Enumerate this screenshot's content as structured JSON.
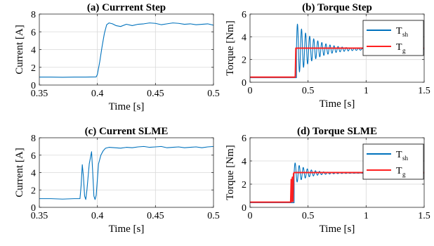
{
  "colors": {
    "blue": "#0072bd",
    "red": "#ff2020",
    "grid": "#d9d9d9",
    "axis": "#262626"
  },
  "chart_data": [
    {
      "type": "line",
      "title": "(a) Currrent Step",
      "xlabel": "Time [s]",
      "ylabel": "Current [A]",
      "xlim": [
        0.35,
        0.5
      ],
      "ylim": [
        0,
        8
      ],
      "xticks": [
        0.35,
        0.4,
        0.45,
        0.5
      ],
      "xticklabels": [
        "0.35",
        "0.4",
        "0.45",
        "0.5"
      ],
      "yticks": [
        0,
        2,
        4,
        6,
        8
      ],
      "yticklabels": [
        "0",
        "2",
        "4",
        "6",
        "8"
      ],
      "grid": true,
      "legend": null,
      "series": [
        {
          "color": "blue",
          "x": [
            0.35,
            0.36,
            0.37,
            0.38,
            0.39,
            0.399,
            0.4,
            0.402,
            0.404,
            0.406,
            0.408,
            0.41,
            0.413,
            0.416,
            0.42,
            0.425,
            0.43,
            0.435,
            0.44,
            0.445,
            0.45,
            0.455,
            0.46,
            0.465,
            0.47,
            0.475,
            0.48,
            0.485,
            0.49,
            0.495,
            0.5
          ],
          "y": [
            0.9,
            0.9,
            0.88,
            0.9,
            0.9,
            0.92,
            1.2,
            2.6,
            4.3,
            5.8,
            6.8,
            7.0,
            6.9,
            6.7,
            6.6,
            6.85,
            6.7,
            6.85,
            6.9,
            7.0,
            6.95,
            6.8,
            6.9,
            7.0,
            6.95,
            6.85,
            6.9,
            6.8,
            6.85,
            6.9,
            6.75
          ]
        }
      ]
    },
    {
      "type": "line",
      "title": "(b)  Torque Step",
      "xlabel": "Time [s]",
      "ylabel": "Torque [Nm]",
      "xlim": [
        0,
        1.5
      ],
      "ylim": [
        0,
        6
      ],
      "xticks": [
        0,
        0.5,
        1,
        1.5
      ],
      "xticklabels": [
        "0",
        "0.5",
        "1",
        "1.5"
      ],
      "yticks": [
        0,
        2,
        4,
        6
      ],
      "yticklabels": [
        "0",
        "2",
        "4",
        "6"
      ],
      "grid": true,
      "legend": "top-right",
      "series": [
        {
          "name": "T",
          "subscript": "sh",
          "color": "blue",
          "x": [
            0,
            0.39
          ],
          "y": [
            0.4,
            0.4
          ],
          "osc": {
            "t0": 0.4,
            "t1": 1.5,
            "base": 2.9,
            "amp": 2.35,
            "tau": 0.16,
            "period": 0.035,
            "pre": 0.4,
            "floor": 0.4
          }
        },
        {
          "name": "T",
          "subscript": "g",
          "color": "red",
          "x": [
            0,
            0.39,
            0.395,
            1.5
          ],
          "y": [
            0.45,
            0.45,
            3.0,
            3.0
          ]
        }
      ]
    },
    {
      "type": "line",
      "title": "(c) Current SLME",
      "xlabel": "Time [s]",
      "ylabel": "Current [A]",
      "xlim": [
        0.35,
        0.5
      ],
      "ylim": [
        0,
        8
      ],
      "xticks": [
        0.35,
        0.4,
        0.45,
        0.5
      ],
      "xticklabels": [
        "0.35",
        "0.4",
        "0.45",
        "0.5"
      ],
      "yticks": [
        0,
        2,
        4,
        6,
        8
      ],
      "yticklabels": [
        "0",
        "2",
        "4",
        "6",
        "8"
      ],
      "grid": true,
      "legend": null,
      "series": [
        {
          "color": "blue",
          "x": [
            0.35,
            0.36,
            0.37,
            0.38,
            0.385,
            0.386,
            0.387,
            0.388,
            0.389,
            0.39,
            0.391,
            0.393,
            0.395,
            0.396,
            0.397,
            0.398,
            0.399,
            0.4,
            0.401,
            0.403,
            0.405,
            0.407,
            0.41,
            0.415,
            0.42,
            0.425,
            0.43,
            0.435,
            0.44,
            0.445,
            0.45,
            0.455,
            0.46,
            0.465,
            0.47,
            0.475,
            0.48,
            0.485,
            0.49,
            0.495,
            0.5
          ],
          "y": [
            1.0,
            1.0,
            0.95,
            1.0,
            1.0,
            2.5,
            4.9,
            3.5,
            1.3,
            0.9,
            2.0,
            5.0,
            6.4,
            4.0,
            1.3,
            0.9,
            1.4,
            3.2,
            5.0,
            6.0,
            6.5,
            6.8,
            6.9,
            6.85,
            6.8,
            6.9,
            6.85,
            6.95,
            7.0,
            6.9,
            6.95,
            7.0,
            6.85,
            6.9,
            6.95,
            6.85,
            6.9,
            6.95,
            6.85,
            6.95,
            7.0
          ]
        }
      ]
    },
    {
      "type": "line",
      "title": "(d) Torque SLME",
      "xlabel": "Time [s]",
      "ylabel": "Torque [Nm]",
      "xlim": [
        0,
        1.5
      ],
      "ylim": [
        0,
        6
      ],
      "xticks": [
        0,
        0.5,
        1,
        1.5
      ],
      "xticklabels": [
        "0",
        "0.5",
        "1",
        "1.5"
      ],
      "yticks": [
        0,
        2,
        4,
        6
      ],
      "yticklabels": [
        "0",
        "2",
        "4",
        "6"
      ],
      "grid": true,
      "legend": "top-right",
      "series": [
        {
          "name": "T",
          "subscript": "sh",
          "color": "blue",
          "x": [
            0,
            0.34
          ],
          "y": [
            0.4,
            0.4
          ],
          "osc": {
            "t0": 0.38,
            "t1": 1.5,
            "base": 2.95,
            "amp": 0.95,
            "tau": 0.12,
            "period": 0.035,
            "pre": 0.4,
            "floor": 0.3
          }
        },
        {
          "name": "T",
          "subscript": "g",
          "color": "red",
          "x": [
            0,
            0.35,
            0.355,
            0.36,
            0.365,
            0.37,
            0.375,
            0.38,
            0.39,
            1.5
          ],
          "y": [
            0.45,
            0.45,
            2.4,
            0.5,
            2.6,
            0.5,
            2.9,
            3.0,
            3.0,
            3.0
          ]
        }
      ]
    }
  ]
}
